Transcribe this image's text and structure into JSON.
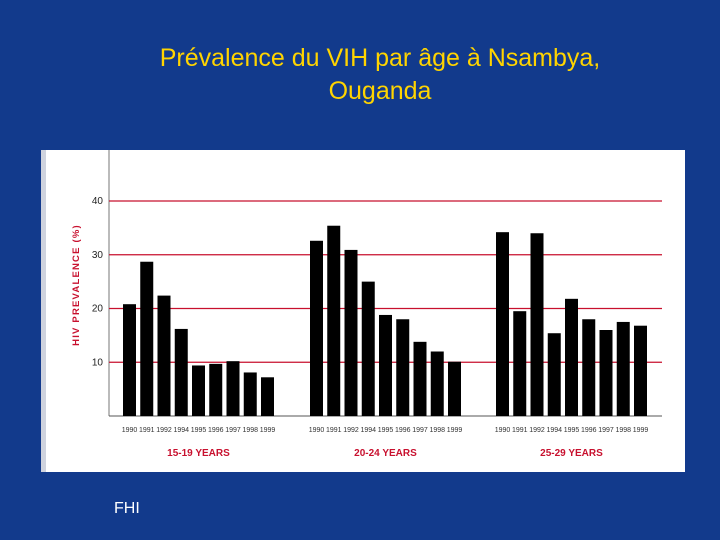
{
  "slide": {
    "title_line1": "Prévalence du VIH par âge à Nsambya,",
    "title_line2": "Ouganda",
    "footer": "FHI"
  },
  "colors": {
    "background": "#123a8c",
    "title": "#ffd400",
    "gridline": "#c8102e",
    "bar": "#000000",
    "axis_label": "#c8102e"
  },
  "chart_data": {
    "type": "bar",
    "ylabel": "HIV PREVALENCE (%)",
    "ylim": [
      0,
      40
    ],
    "yticks": [
      10,
      20,
      30,
      40
    ],
    "grid": true,
    "groups": [
      {
        "name": "15-19 YEARS",
        "categories": [
          "1990",
          "1991",
          "1992",
          "1994",
          "1995",
          "1996",
          "1997",
          "1998",
          "1999"
        ],
        "values": [
          20.8,
          28.7,
          22.4,
          16.2,
          9.4,
          9.7,
          10.2,
          8.1,
          7.2
        ]
      },
      {
        "name": "20-24 YEARS",
        "categories": [
          "1990",
          "1991",
          "1992",
          "1994",
          "1995",
          "1996",
          "1997",
          "1998",
          "1999"
        ],
        "values": [
          32.6,
          35.4,
          30.9,
          25.0,
          18.8,
          18.0,
          13.8,
          12.0,
          10.1
        ]
      },
      {
        "name": "25-29 YEARS",
        "categories": [
          "1990",
          "1991",
          "1992",
          "1994",
          "1995",
          "1996",
          "1997",
          "1998",
          "1999"
        ],
        "values": [
          34.2,
          19.5,
          34.0,
          15.4,
          21.8,
          18.0,
          16.0,
          17.5,
          16.8
        ]
      }
    ]
  }
}
